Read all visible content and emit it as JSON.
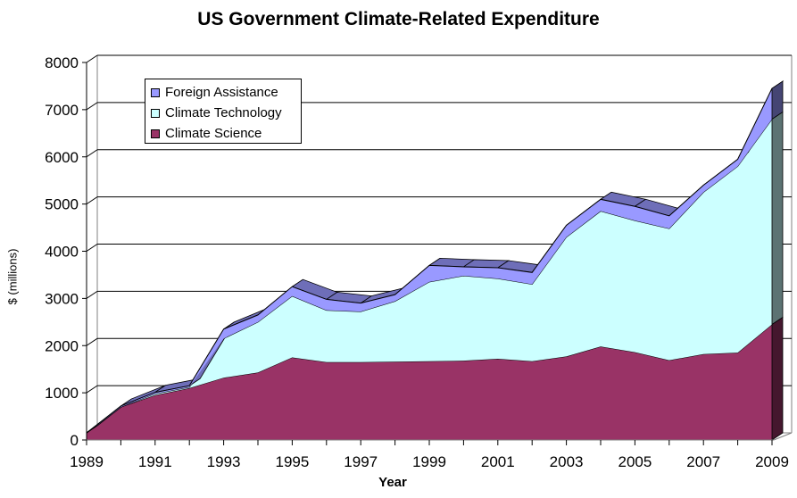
{
  "chart_data": {
    "type": "area",
    "stacked": true,
    "three_d": true,
    "title": "US Government Climate-Related Expenditure",
    "xlabel": "Year",
    "ylabel": "$ (millions)",
    "ylim": [
      0,
      8000
    ],
    "yticks": [
      0,
      1000,
      2000,
      3000,
      4000,
      5000,
      6000,
      7000,
      8000
    ],
    "xlim": [
      1989,
      2009
    ],
    "xtick_labels": [
      "1989",
      "1991",
      "1993",
      "1995",
      "1997",
      "1999",
      "2001",
      "2003",
      "2005",
      "2007",
      "2009"
    ],
    "x": [
      1989,
      1990,
      1991,
      1992,
      1993,
      1994,
      1995,
      1996,
      1997,
      1998,
      1999,
      2000,
      2001,
      2002,
      2003,
      2004,
      2005,
      2006,
      2007,
      2008,
      2009
    ],
    "grid": "horizontal",
    "legend_position": "top-left",
    "series": [
      {
        "name": "Climate Science",
        "color": "#993366",
        "values": [
          150,
          700,
          950,
          1100,
          1320,
          1430,
          1750,
          1650,
          1650,
          1660,
          1670,
          1680,
          1720,
          1670,
          1770,
          1980,
          1860,
          1690,
          1820,
          1850,
          2450
        ]
      },
      {
        "name": "Climate Technology",
        "color": "#CCFFFF",
        "values": [
          0,
          0,
          30,
          20,
          830,
          1070,
          1300,
          1100,
          1070,
          1280,
          1680,
          1800,
          1700,
          1630,
          2530,
          2870,
          2790,
          2790,
          3430,
          3950,
          4350
        ]
      },
      {
        "name": "Foreign Assistance",
        "color": "#9999FF",
        "values": [
          0,
          20,
          30,
          30,
          200,
          150,
          200,
          230,
          180,
          140,
          350,
          190,
          230,
          250,
          250,
          250,
          300,
          270,
          150,
          150,
          650
        ]
      }
    ],
    "legend": [
      {
        "label": "Foreign Assistance",
        "color": "#9999FF"
      },
      {
        "label": "Climate Technology",
        "color": "#CCFFFF"
      },
      {
        "label": "Climate Science",
        "color": "#993366"
      }
    ]
  }
}
